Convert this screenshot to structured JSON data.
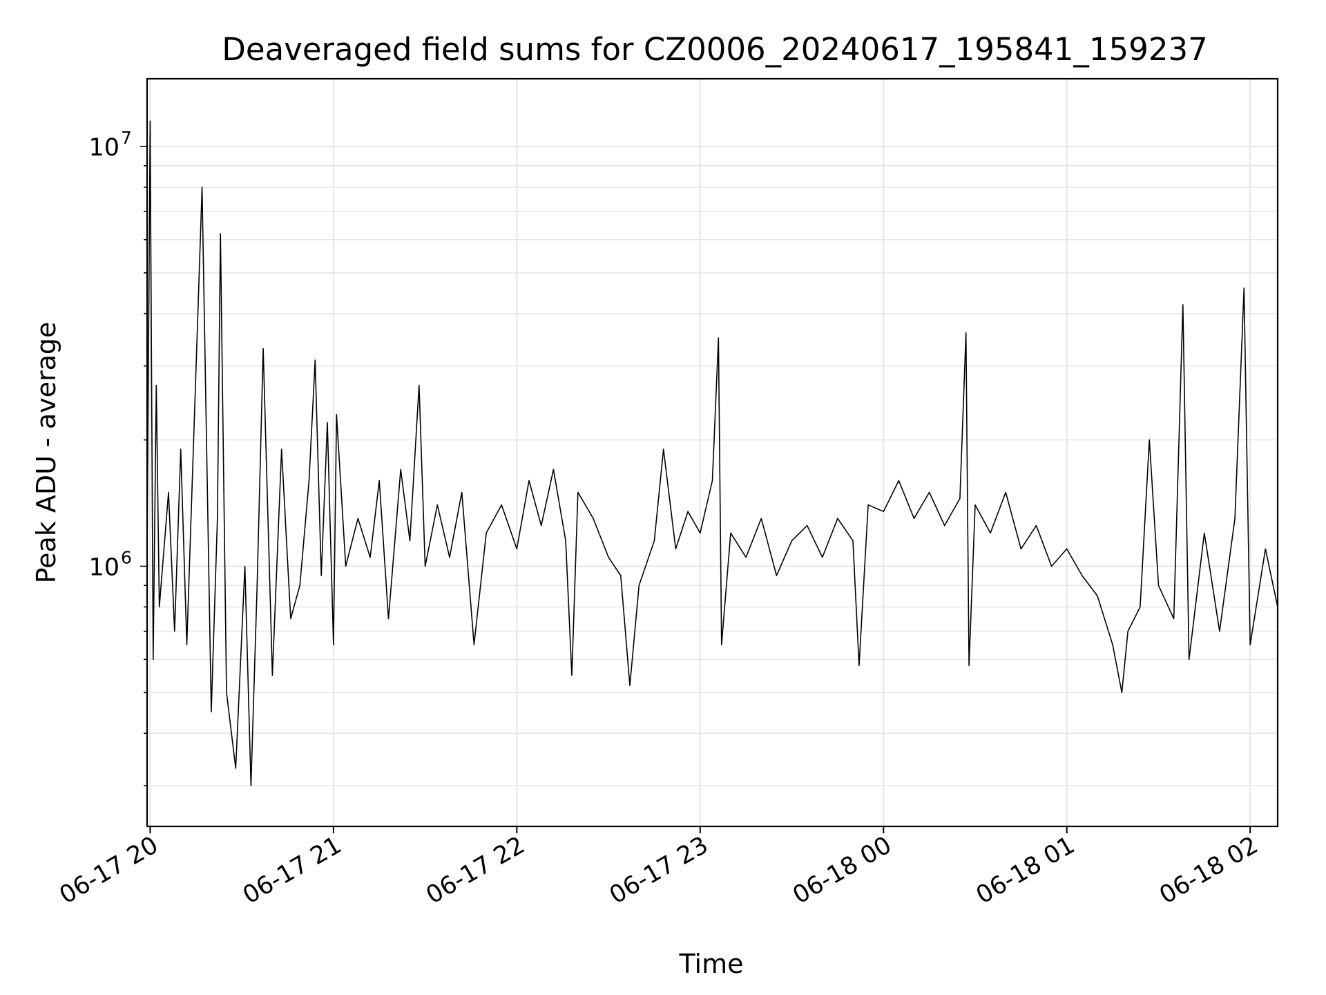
{
  "chart_data": {
    "type": "line",
    "title": "Deaveraged field sums for CZ0006_20240617_195841_159237",
    "xlabel": "Time",
    "ylabel": "Peak ADU - average",
    "yscale": "log",
    "ylim": [
      240000,
      14500000
    ],
    "xlim": [
      "2024-06-17 19:59",
      "2024-06-18 02:09"
    ],
    "grid": true,
    "line_color": "#000000",
    "grid_color": "#e6e6e6",
    "x_ticks": [
      {
        "t": "2024-06-17 20:00",
        "label": "06-17 20"
      },
      {
        "t": "2024-06-17 21:00",
        "label": "06-17 21"
      },
      {
        "t": "2024-06-17 22:00",
        "label": "06-17 22"
      },
      {
        "t": "2024-06-17 23:00",
        "label": "06-17 23"
      },
      {
        "t": "2024-06-18 00:00",
        "label": "06-18 00"
      },
      {
        "t": "2024-06-18 01:00",
        "label": "06-18 01"
      },
      {
        "t": "2024-06-18 02:00",
        "label": "06-18 02"
      }
    ],
    "y_ticks": [
      {
        "value": 1000000,
        "base": "10",
        "exp": "6"
      },
      {
        "value": 10000000,
        "base": "10",
        "exp": "7"
      }
    ],
    "series": [
      {
        "points": [
          [
            "2024-06-17 19:59",
            1100000
          ],
          [
            "2024-06-17 20:00",
            11500000
          ],
          [
            "2024-06-17 20:01",
            600000
          ],
          [
            "2024-06-17 20:02",
            2700000
          ],
          [
            "2024-06-17 20:03",
            800000
          ],
          [
            "2024-06-17 20:06",
            1500000
          ],
          [
            "2024-06-17 20:08",
            700000
          ],
          [
            "2024-06-17 20:10",
            1900000
          ],
          [
            "2024-06-17 20:12",
            650000
          ],
          [
            "2024-06-17 20:17",
            8000000
          ],
          [
            "2024-06-17 20:20",
            450000
          ],
          [
            "2024-06-17 20:22",
            1300000
          ],
          [
            "2024-06-17 20:23",
            6200000
          ],
          [
            "2024-06-17 20:25",
            500000
          ],
          [
            "2024-06-17 20:28",
            330000
          ],
          [
            "2024-06-17 20:31",
            1000000
          ],
          [
            "2024-06-17 20:33",
            300000
          ],
          [
            "2024-06-17 20:35",
            900000
          ],
          [
            "2024-06-17 20:37",
            3300000
          ],
          [
            "2024-06-17 20:40",
            550000
          ],
          [
            "2024-06-17 20:43",
            1900000
          ],
          [
            "2024-06-17 20:46",
            750000
          ],
          [
            "2024-06-17 20:49",
            900000
          ],
          [
            "2024-06-17 20:52",
            1600000
          ],
          [
            "2024-06-17 20:54",
            3100000
          ],
          [
            "2024-06-17 20:56",
            950000
          ],
          [
            "2024-06-17 20:58",
            2200000
          ],
          [
            "2024-06-17 21:00",
            650000
          ],
          [
            "2024-06-17 21:01",
            2300000
          ],
          [
            "2024-06-17 21:04",
            1000000
          ],
          [
            "2024-06-17 21:08",
            1300000
          ],
          [
            "2024-06-17 21:12",
            1050000
          ],
          [
            "2024-06-17 21:15",
            1600000
          ],
          [
            "2024-06-17 21:18",
            750000
          ],
          [
            "2024-06-17 21:22",
            1700000
          ],
          [
            "2024-06-17 21:25",
            1150000
          ],
          [
            "2024-06-17 21:28",
            2700000
          ],
          [
            "2024-06-17 21:30",
            1000000
          ],
          [
            "2024-06-17 21:34",
            1400000
          ],
          [
            "2024-06-17 21:38",
            1050000
          ],
          [
            "2024-06-17 21:42",
            1500000
          ],
          [
            "2024-06-17 21:46",
            650000
          ],
          [
            "2024-06-17 21:50",
            1200000
          ],
          [
            "2024-06-17 21:55",
            1400000
          ],
          [
            "2024-06-17 22:00",
            1100000
          ],
          [
            "2024-06-17 22:04",
            1600000
          ],
          [
            "2024-06-17 22:08",
            1250000
          ],
          [
            "2024-06-17 22:12",
            1700000
          ],
          [
            "2024-06-17 22:16",
            1150000
          ],
          [
            "2024-06-17 22:18",
            550000
          ],
          [
            "2024-06-17 22:20",
            1500000
          ],
          [
            "2024-06-17 22:25",
            1300000
          ],
          [
            "2024-06-17 22:30",
            1050000
          ],
          [
            "2024-06-17 22:34",
            950000
          ],
          [
            "2024-06-17 22:37",
            520000
          ],
          [
            "2024-06-17 22:40",
            900000
          ],
          [
            "2024-06-17 22:45",
            1150000
          ],
          [
            "2024-06-17 22:48",
            1900000
          ],
          [
            "2024-06-17 22:52",
            1100000
          ],
          [
            "2024-06-17 22:56",
            1350000
          ],
          [
            "2024-06-17 23:00",
            1200000
          ],
          [
            "2024-06-17 23:04",
            1600000
          ],
          [
            "2024-06-17 23:06",
            3500000
          ],
          [
            "2024-06-17 23:07",
            650000
          ],
          [
            "2024-06-17 23:10",
            1200000
          ],
          [
            "2024-06-17 23:15",
            1050000
          ],
          [
            "2024-06-17 23:20",
            1300000
          ],
          [
            "2024-06-17 23:25",
            950000
          ],
          [
            "2024-06-17 23:30",
            1150000
          ],
          [
            "2024-06-17 23:35",
            1250000
          ],
          [
            "2024-06-17 23:40",
            1050000
          ],
          [
            "2024-06-17 23:45",
            1300000
          ],
          [
            "2024-06-17 23:50",
            1150000
          ],
          [
            "2024-06-17 23:52",
            580000
          ],
          [
            "2024-06-17 23:55",
            1400000
          ],
          [
            "2024-06-18 00:00",
            1350000
          ],
          [
            "2024-06-18 00:05",
            1600000
          ],
          [
            "2024-06-18 00:10",
            1300000
          ],
          [
            "2024-06-18 00:15",
            1500000
          ],
          [
            "2024-06-18 00:20",
            1250000
          ],
          [
            "2024-06-18 00:25",
            1450000
          ],
          [
            "2024-06-18 00:27",
            3600000
          ],
          [
            "2024-06-18 00:28",
            580000
          ],
          [
            "2024-06-18 00:30",
            1400000
          ],
          [
            "2024-06-18 00:35",
            1200000
          ],
          [
            "2024-06-18 00:40",
            1500000
          ],
          [
            "2024-06-18 00:45",
            1100000
          ],
          [
            "2024-06-18 00:50",
            1250000
          ],
          [
            "2024-06-18 00:55",
            1000000
          ],
          [
            "2024-06-18 01:00",
            1100000
          ],
          [
            "2024-06-18 01:05",
            950000
          ],
          [
            "2024-06-18 01:10",
            850000
          ],
          [
            "2024-06-18 01:15",
            650000
          ],
          [
            "2024-06-18 01:18",
            500000
          ],
          [
            "2024-06-18 01:20",
            700000
          ],
          [
            "2024-06-18 01:24",
            800000
          ],
          [
            "2024-06-18 01:27",
            2000000
          ],
          [
            "2024-06-18 01:30",
            900000
          ],
          [
            "2024-06-18 01:35",
            750000
          ],
          [
            "2024-06-18 01:38",
            4200000
          ],
          [
            "2024-06-18 01:40",
            600000
          ],
          [
            "2024-06-18 01:45",
            1200000
          ],
          [
            "2024-06-18 01:50",
            700000
          ],
          [
            "2024-06-18 01:55",
            1300000
          ],
          [
            "2024-06-18 01:58",
            4600000
          ],
          [
            "2024-06-18 02:00",
            650000
          ],
          [
            "2024-06-18 02:05",
            1100000
          ],
          [
            "2024-06-18 02:09",
            800000
          ]
        ]
      }
    ]
  }
}
